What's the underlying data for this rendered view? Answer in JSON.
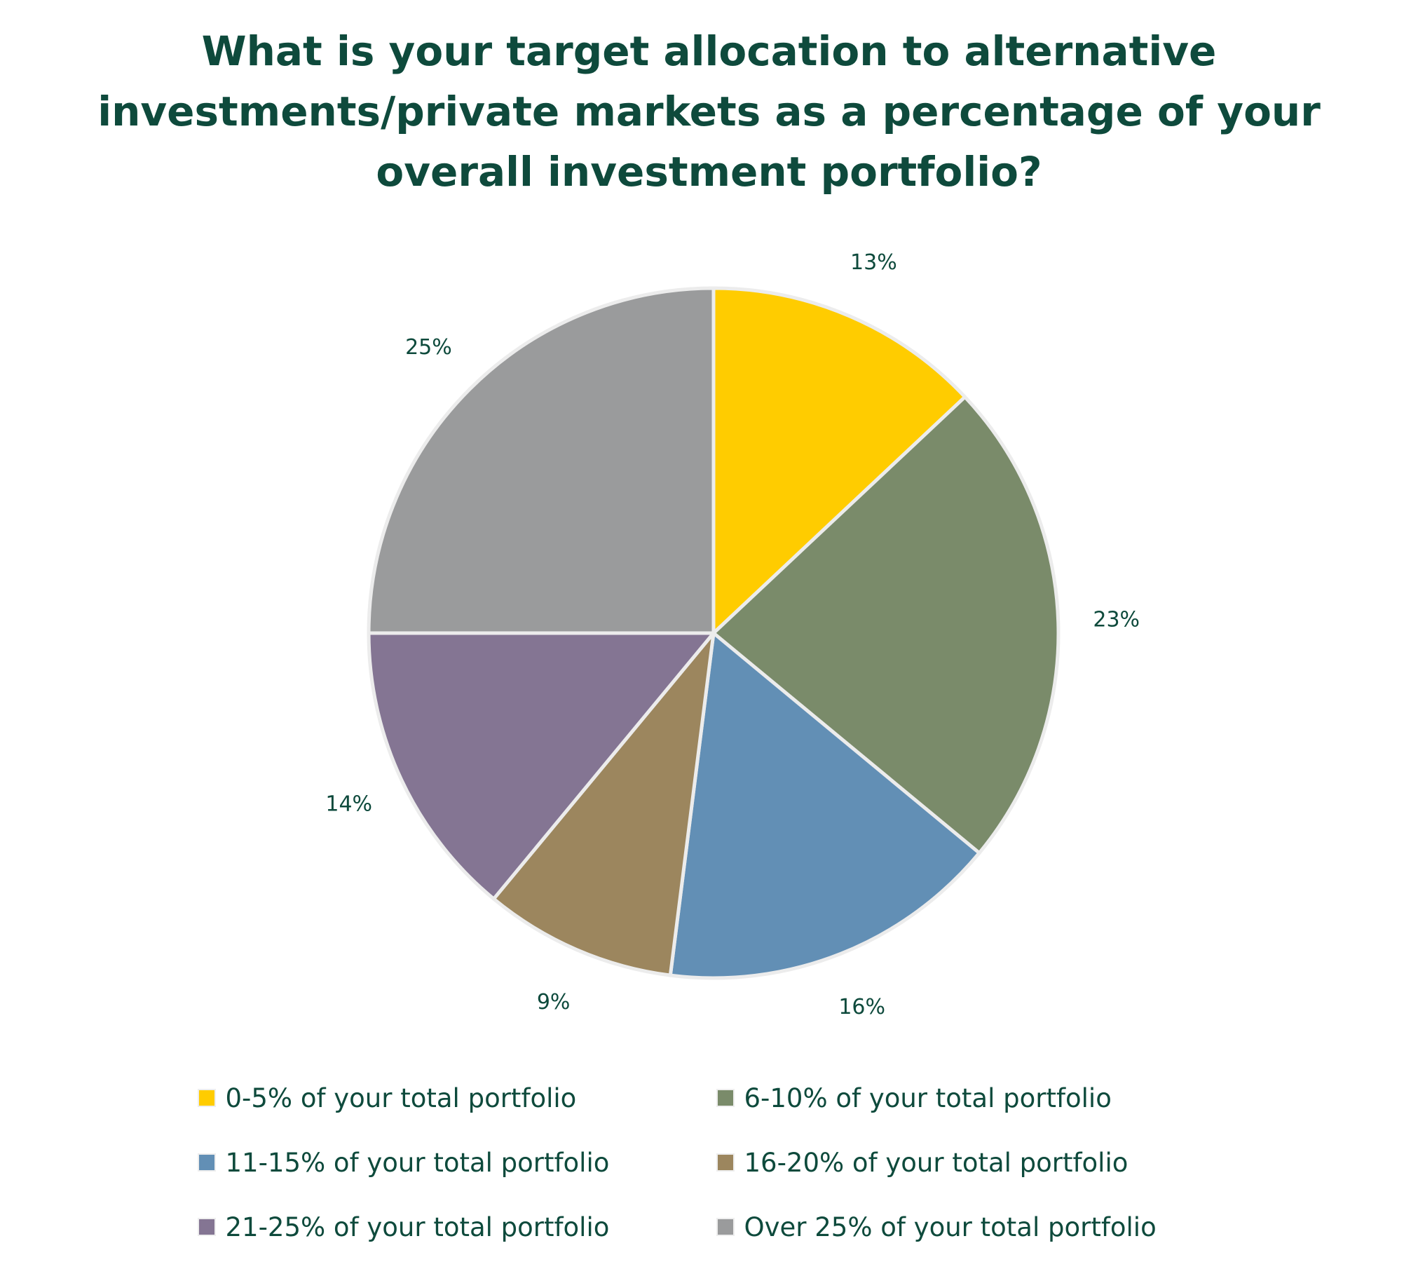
{
  "chart_data": {
    "type": "pie",
    "title_lines": [
      "What is your target allocation to alternative",
      "investments/private markets as a percentage of your",
      "overall investment portfolio?"
    ],
    "legend_position": "bottom",
    "slices": [
      {
        "label": "0-5% of your total portfolio",
        "value": 13,
        "value_label": "13%",
        "color": "#FFCC00"
      },
      {
        "label": "6-10% of your total portfolio",
        "value": 23,
        "value_label": "23%",
        "color": "#7A8B6A"
      },
      {
        "label": "11-15% of your total portfolio",
        "value": 16,
        "value_label": "16%",
        "color": "#628FB5"
      },
      {
        "label": "16-20% of your total portfolio",
        "value": 9,
        "value_label": "9%",
        "color": "#9C865E"
      },
      {
        "label": "21-25% of your total portfolio",
        "value": 14,
        "value_label": "14%",
        "color": "#847593"
      },
      {
        "label": "Over 25% of your total portfolio",
        "value": 25,
        "value_label": "25%",
        "color": "#9A9B9C"
      }
    ]
  }
}
